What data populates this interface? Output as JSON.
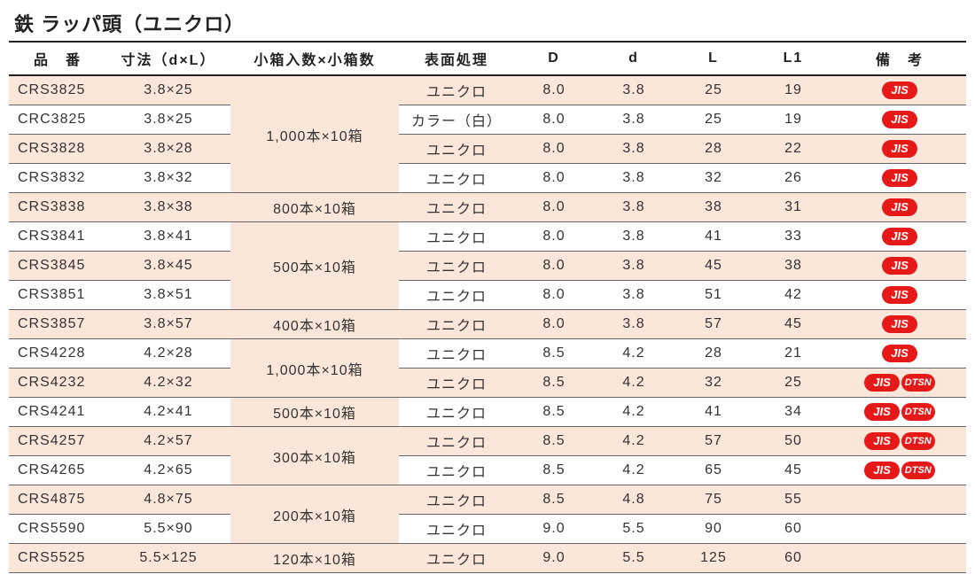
{
  "title": "鉄 ラッパ頭（ユニクロ）",
  "headers": {
    "code": "品　番",
    "dim": "寸法（d×L）",
    "pack": "小箱入数×小箱数",
    "surface": "表面処理",
    "D": "D",
    "d": "d",
    "L": "L",
    "L1": "L1",
    "remarks": "備　考"
  },
  "badge_colors": {
    "jis": "#e61919",
    "dtsn": "#e61919"
  },
  "row_colors": {
    "alt": "#fbe6da",
    "plain": "#ffffff"
  },
  "border_color": "#666666",
  "header_border_color": "#222222",
  "pack_groups": [
    {
      "label": "1,000本×10箱",
      "rowspan": 4
    },
    {
      "label": "800本×10箱",
      "rowspan": 1
    },
    {
      "label": "500本×10箱",
      "rowspan": 3
    },
    {
      "label": "400本×10箱",
      "rowspan": 1
    },
    {
      "label": "1,000本×10箱",
      "rowspan": 2
    },
    {
      "label": "500本×10箱",
      "rowspan": 1
    },
    {
      "label": "300本×10箱",
      "rowspan": 2
    },
    {
      "label": "200本×10箱",
      "rowspan": 2
    },
    {
      "label": "120本×10箱",
      "rowspan": 1
    }
  ],
  "rows": [
    {
      "code": "CRS3825",
      "dim": "3.8×25",
      "surface": "ユニクロ",
      "D": "8.0",
      "d": "3.8",
      "L": "25",
      "L1": "19",
      "badges": [
        "JIS"
      ],
      "alt": true
    },
    {
      "code": "CRC3825",
      "dim": "3.8×25",
      "surface": "カラー（白）",
      "D": "8.0",
      "d": "3.8",
      "L": "25",
      "L1": "19",
      "badges": [
        "JIS"
      ],
      "alt": false
    },
    {
      "code": "CRS3828",
      "dim": "3.8×28",
      "surface": "ユニクロ",
      "D": "8.0",
      "d": "3.8",
      "L": "28",
      "L1": "22",
      "badges": [
        "JIS"
      ],
      "alt": true
    },
    {
      "code": "CRS3832",
      "dim": "3.8×32",
      "surface": "ユニクロ",
      "D": "8.0",
      "d": "3.8",
      "L": "32",
      "L1": "26",
      "badges": [
        "JIS"
      ],
      "alt": false
    },
    {
      "code": "CRS3838",
      "dim": "3.8×38",
      "surface": "ユニクロ",
      "D": "8.0",
      "d": "3.8",
      "L": "38",
      "L1": "31",
      "badges": [
        "JIS"
      ],
      "alt": true
    },
    {
      "code": "CRS3841",
      "dim": "3.8×41",
      "surface": "ユニクロ",
      "D": "8.0",
      "d": "3.8",
      "L": "41",
      "L1": "33",
      "badges": [
        "JIS"
      ],
      "alt": false
    },
    {
      "code": "CRS3845",
      "dim": "3.8×45",
      "surface": "ユニクロ",
      "D": "8.0",
      "d": "3.8",
      "L": "45",
      "L1": "38",
      "badges": [
        "JIS"
      ],
      "alt": true
    },
    {
      "code": "CRS3851",
      "dim": "3.8×51",
      "surface": "ユニクロ",
      "D": "8.0",
      "d": "3.8",
      "L": "51",
      "L1": "42",
      "badges": [
        "JIS"
      ],
      "alt": false
    },
    {
      "code": "CRS3857",
      "dim": "3.8×57",
      "surface": "ユニクロ",
      "D": "8.0",
      "d": "3.8",
      "L": "57",
      "L1": "45",
      "badges": [
        "JIS"
      ],
      "alt": true
    },
    {
      "code": "CRS4228",
      "dim": "4.2×28",
      "surface": "ユニクロ",
      "D": "8.5",
      "d": "4.2",
      "L": "28",
      "L1": "21",
      "badges": [
        "JIS"
      ],
      "alt": false
    },
    {
      "code": "CRS4232",
      "dim": "4.2×32",
      "surface": "ユニクロ",
      "D": "8.5",
      "d": "4.2",
      "L": "32",
      "L1": "25",
      "badges": [
        "JIS",
        "DTSN"
      ],
      "alt": true
    },
    {
      "code": "CRS4241",
      "dim": "4.2×41",
      "surface": "ユニクロ",
      "D": "8.5",
      "d": "4.2",
      "L": "41",
      "L1": "34",
      "badges": [
        "JIS",
        "DTSN"
      ],
      "alt": false
    },
    {
      "code": "CRS4257",
      "dim": "4.2×57",
      "surface": "ユニクロ",
      "D": "8.5",
      "d": "4.2",
      "L": "57",
      "L1": "50",
      "badges": [
        "JIS",
        "DTSN"
      ],
      "alt": true
    },
    {
      "code": "CRS4265",
      "dim": "4.2×65",
      "surface": "ユニクロ",
      "D": "8.5",
      "d": "4.2",
      "L": "65",
      "L1": "45",
      "badges": [
        "JIS",
        "DTSN"
      ],
      "alt": false
    },
    {
      "code": "CRS4875",
      "dim": "4.8×75",
      "surface": "ユニクロ",
      "D": "8.5",
      "d": "4.8",
      "L": "75",
      "L1": "55",
      "badges": [],
      "alt": true
    },
    {
      "code": "CRS5590",
      "dim": "5.5×90",
      "surface": "ユニクロ",
      "D": "9.0",
      "d": "5.5",
      "L": "90",
      "L1": "60",
      "badges": [],
      "alt": false
    },
    {
      "code": "CRS5525",
      "dim": "5.5×125",
      "surface": "ユニクロ",
      "D": "9.0",
      "d": "5.5",
      "L": "125",
      "L1": "60",
      "badges": [],
      "alt": true
    }
  ]
}
